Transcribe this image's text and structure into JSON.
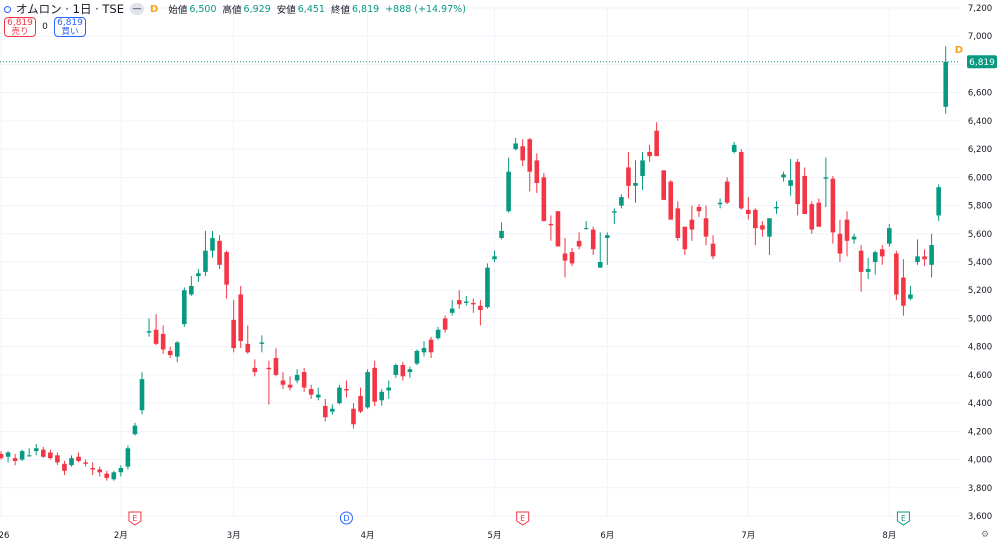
{
  "header": {
    "symbol": "オムロン · 1日 · TSE",
    "eye_icon": "eye-off-icon",
    "d_badge": "D",
    "open_label": "始値",
    "open_value": "6,500",
    "high_label": "高値",
    "high_value": "6,929",
    "low_label": "安値",
    "low_value": "6,451",
    "close_label": "終値",
    "close_value": "6,819",
    "change": "+888 (+14.97%)"
  },
  "trade": {
    "sell_price": "6,819",
    "sell_label": "売り",
    "spread": "0",
    "buy_price": "6,819",
    "buy_label": "買い"
  },
  "colors": {
    "up": "#089981",
    "down": "#f23645",
    "grid": "#f0f3fa",
    "text": "#131722"
  },
  "chart_data": {
    "type": "candlestick",
    "y_ticks": [
      "3,600",
      "3,800",
      "4,000",
      "4,200",
      "4,400",
      "4,600",
      "4,800",
      "5,000",
      "5,200",
      "5,400",
      "5,600",
      "5,800",
      "6,000",
      "6,200",
      "6,400",
      "6,600",
      "6,800",
      "7,000",
      "7,200"
    ],
    "ylim": [
      3600,
      7200
    ],
    "x_ticks": [
      "26",
      "2月",
      "3月",
      "4月",
      "5月",
      "6月",
      "7月",
      "8月"
    ],
    "last_price_label": "6,819",
    "last_price": 6819,
    "events": [
      {
        "type": "E",
        "bar": 19,
        "color": "#f23645"
      },
      {
        "type": "D",
        "bar": 49,
        "color": "#2962ff"
      },
      {
        "type": "E",
        "bar": 74,
        "color": "#f23645"
      },
      {
        "type": "E",
        "bar": 128,
        "color": "#089981"
      }
    ],
    "bars": [
      [
        4040,
        4060,
        4000,
        4010
      ],
      [
        4020,
        4060,
        3980,
        4050
      ],
      [
        4010,
        4040,
        3960,
        3990
      ],
      [
        4000,
        4070,
        3990,
        4060
      ],
      [
        4030,
        4080,
        4020,
        4030
      ],
      [
        4060,
        4110,
        4030,
        4080
      ],
      [
        4070,
        4090,
        4010,
        4020
      ],
      [
        4050,
        4070,
        4000,
        4010
      ],
      [
        4030,
        4050,
        3960,
        3980
      ],
      [
        3970,
        3990,
        3890,
        3920
      ],
      [
        3960,
        4030,
        3950,
        4010
      ],
      [
        4020,
        4050,
        3980,
        3990
      ],
      [
        3980,
        4000,
        3950,
        3970
      ],
      [
        3940,
        3980,
        3890,
        3930
      ],
      [
        3930,
        3950,
        3880,
        3910
      ],
      [
        3900,
        3920,
        3850,
        3870
      ],
      [
        3860,
        3920,
        3850,
        3910
      ],
      [
        3910,
        3960,
        3880,
        3940
      ],
      [
        3950,
        4100,
        3930,
        4080
      ],
      [
        4180,
        4260,
        4170,
        4240
      ],
      [
        4350,
        4620,
        4320,
        4570
      ],
      [
        4900,
        5000,
        4870,
        4910
      ],
      [
        4920,
        5030,
        4810,
        4820
      ],
      [
        4890,
        4950,
        4750,
        4780
      ],
      [
        4770,
        4800,
        4720,
        4740
      ],
      [
        4730,
        4840,
        4690,
        4830
      ],
      [
        4960,
        5220,
        4940,
        5200
      ],
      [
        5170,
        5300,
        5160,
        5230
      ],
      [
        5300,
        5350,
        5260,
        5320
      ],
      [
        5330,
        5620,
        5300,
        5480
      ],
      [
        5480,
        5620,
        5430,
        5570
      ],
      [
        5550,
        5590,
        5350,
        5380
      ],
      [
        5470,
        5480,
        5140,
        5240
      ],
      [
        4990,
        5130,
        4760,
        4790
      ],
      [
        5170,
        5230,
        4790,
        4840
      ],
      [
        4820,
        4950,
        4750,
        4760
      ],
      [
        4650,
        4710,
        4590,
        4620
      ],
      [
        4820,
        4880,
        4760,
        4830
      ],
      [
        4650,
        4700,
        4390,
        4640
      ],
      [
        4720,
        4790,
        4590,
        4600
      ],
      [
        4560,
        4620,
        4500,
        4530
      ],
      [
        4530,
        4590,
        4490,
        4510
      ],
      [
        4560,
        4640,
        4540,
        4600
      ],
      [
        4620,
        4650,
        4480,
        4510
      ],
      [
        4500,
        4530,
        4430,
        4460
      ],
      [
        4440,
        4510,
        4420,
        4460
      ],
      [
        4380,
        4430,
        4270,
        4300
      ],
      [
        4340,
        4390,
        4320,
        4360
      ],
      [
        4400,
        4530,
        4390,
        4510
      ],
      [
        4500,
        4560,
        4440,
        4490
      ],
      [
        4360,
        4400,
        4220,
        4250
      ],
      [
        4450,
        4510,
        4330,
        4340
      ],
      [
        4370,
        4640,
        4360,
        4620
      ],
      [
        4650,
        4700,
        4380,
        4410
      ],
      [
        4420,
        4500,
        4380,
        4480
      ],
      [
        4490,
        4560,
        4430,
        4510
      ],
      [
        4600,
        4680,
        4580,
        4670
      ],
      [
        4670,
        4690,
        4560,
        4590
      ],
      [
        4620,
        4660,
        4580,
        4640
      ],
      [
        4680,
        4780,
        4670,
        4770
      ],
      [
        4760,
        4840,
        4730,
        4790
      ],
      [
        4850,
        4870,
        4720,
        4760
      ],
      [
        4860,
        4940,
        4850,
        4920
      ],
      [
        5000,
        5020,
        4900,
        4920
      ],
      [
        5040,
        5130,
        5020,
        5070
      ],
      [
        5130,
        5200,
        5070,
        5100
      ],
      [
        5110,
        5160,
        5090,
        5120
      ],
      [
        5110,
        5140,
        5040,
        5100
      ],
      [
        5090,
        5130,
        4950,
        5060
      ],
      [
        5080,
        5390,
        5070,
        5360
      ],
      [
        5420,
        5480,
        5400,
        5440
      ],
      [
        5570,
        5680,
        5560,
        5620
      ],
      [
        5760,
        6140,
        5750,
        6040
      ],
      [
        6200,
        6280,
        6190,
        6240
      ],
      [
        6220,
        6270,
        6080,
        6120
      ],
      [
        6270,
        6280,
        5900,
        6040
      ],
      [
        6120,
        6170,
        5890,
        5960
      ],
      [
        6000,
        6030,
        5690,
        5690
      ],
      [
        5670,
        5730,
        5550,
        5660
      ],
      [
        5760,
        5760,
        5600,
        5510
      ],
      [
        5460,
        5570,
        5290,
        5410
      ],
      [
        5470,
        5500,
        5370,
        5390
      ],
      [
        5550,
        5610,
        5490,
        5510
      ],
      [
        5640,
        5690,
        5630,
        5640
      ],
      [
        5630,
        5650,
        5450,
        5490
      ],
      [
        5360,
        5610,
        5360,
        5400
      ],
      [
        5570,
        5610,
        5380,
        5590
      ],
      [
        5750,
        5780,
        5670,
        5760
      ],
      [
        5800,
        5880,
        5780,
        5860
      ],
      [
        6070,
        6180,
        5850,
        5940
      ],
      [
        5940,
        6120,
        5820,
        5960
      ],
      [
        6010,
        6180,
        5910,
        6120
      ],
      [
        6180,
        6230,
        6110,
        6150
      ],
      [
        6330,
        6390,
        6160,
        6150
      ],
      [
        6050,
        6050,
        5850,
        5840
      ],
      [
        5970,
        5980,
        5720,
        5700
      ],
      [
        5780,
        5830,
        5550,
        5570
      ],
      [
        5650,
        5650,
        5450,
        5490
      ],
      [
        5700,
        5800,
        5550,
        5630
      ],
      [
        5790,
        5810,
        5720,
        5760
      ],
      [
        5710,
        5800,
        5520,
        5580
      ],
      [
        5530,
        5590,
        5420,
        5440
      ],
      [
        5810,
        5850,
        5780,
        5820
      ],
      [
        5970,
        6000,
        5810,
        5820
      ],
      [
        6180,
        6250,
        6170,
        6230
      ],
      [
        6180,
        6200,
        5770,
        5780
      ],
      [
        5770,
        5860,
        5700,
        5740
      ],
      [
        5770,
        5780,
        5520,
        5640
      ],
      [
        5660,
        5690,
        5580,
        5630
      ],
      [
        5580,
        5620,
        5450,
        5710
      ],
      [
        5780,
        5830,
        5740,
        5790
      ],
      [
        6000,
        6040,
        5970,
        6020
      ],
      [
        5940,
        6130,
        5870,
        5980
      ],
      [
        6110,
        6130,
        5730,
        5810
      ],
      [
        6010,
        6070,
        5780,
        5740
      ],
      [
        5810,
        5830,
        5600,
        5630
      ],
      [
        5820,
        5850,
        5650,
        5650
      ],
      [
        5990,
        6140,
        5790,
        6000
      ],
      [
        5990,
        6010,
        5530,
        5610
      ],
      [
        5600,
        5700,
        5400,
        5460
      ],
      [
        5700,
        5760,
        5440,
        5550
      ],
      [
        5560,
        5600,
        5530,
        5580
      ],
      [
        5480,
        5520,
        5190,
        5330
      ],
      [
        5330,
        5430,
        5280,
        5350
      ],
      [
        5400,
        5480,
        5310,
        5470
      ],
      [
        5490,
        5520,
        5380,
        5440
      ],
      [
        5530,
        5670,
        5510,
        5640
      ],
      [
        5460,
        5480,
        5130,
        5170
      ],
      [
        5290,
        5420,
        5020,
        5090
      ],
      [
        5140,
        5230,
        5130,
        5170
      ],
      [
        5400,
        5560,
        5380,
        5440
      ],
      [
        5440,
        5490,
        5370,
        5420
      ],
      [
        5380,
        5600,
        5290,
        5520
      ],
      [
        5730,
        5950,
        5690,
        5930
      ],
      [
        6500,
        6929,
        6451,
        6819
      ]
    ]
  }
}
